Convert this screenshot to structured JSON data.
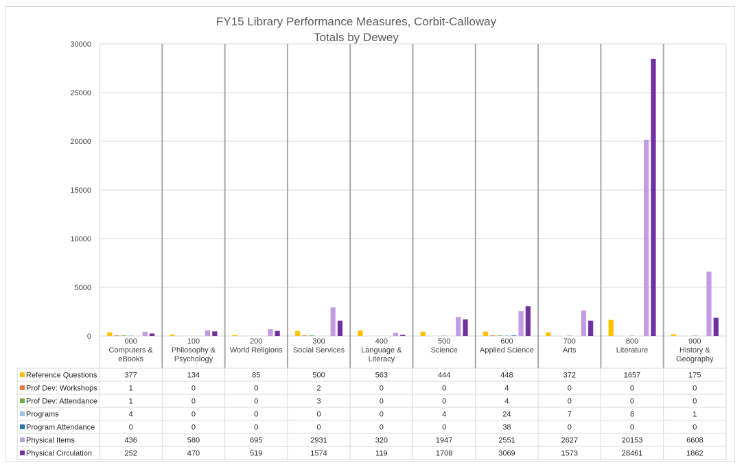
{
  "chart_data": {
    "type": "bar",
    "title": [
      "FY15 Library Performance Measures, Corbit-Calloway",
      "Totals by Dewey"
    ],
    "ylim": [
      0,
      30000
    ],
    "yticks": [
      0,
      5000,
      10000,
      15000,
      20000,
      25000,
      30000
    ],
    "grid": true,
    "legend_placement": "data-table-left",
    "categories": [
      [
        "000",
        "Computers &",
        "eBooks"
      ],
      [
        "100",
        "Philosophy &",
        "Psychology"
      ],
      [
        "200",
        "World Religions"
      ],
      [
        "300",
        "Social Services"
      ],
      [
        "400",
        "Language &",
        "Literacy"
      ],
      [
        "500",
        "Science"
      ],
      [
        "600",
        "Applied Science"
      ],
      [
        "700",
        "Arts"
      ],
      [
        "800",
        "Literature"
      ],
      [
        "900",
        "History &",
        "Geography"
      ]
    ],
    "series": [
      {
        "name": "Reference Questions",
        "color": "#ffc000",
        "values": [
          377,
          134,
          85,
          500,
          563,
          444,
          448,
          372,
          1657,
          175
        ]
      },
      {
        "name": "Prof Dev: Workshops",
        "color": "#ed7d31",
        "values": [
          1,
          0,
          0,
          2,
          0,
          0,
          4,
          0,
          0,
          0
        ]
      },
      {
        "name": "Prof Dev: Attendance",
        "color": "#70ad47",
        "values": [
          1,
          0,
          0,
          3,
          0,
          0,
          4,
          0,
          0,
          0
        ]
      },
      {
        "name": "Programs",
        "color": "#9dc3e6",
        "values": [
          4,
          0,
          0,
          0,
          0,
          4,
          24,
          7,
          8,
          1
        ]
      },
      {
        "name": "Program Attendance",
        "color": "#2e75b6",
        "values": [
          0,
          0,
          0,
          0,
          0,
          0,
          38,
          0,
          0,
          0
        ]
      },
      {
        "name": "Physical Items",
        "color": "#c39be3",
        "values": [
          436,
          580,
          695,
          2931,
          320,
          1947,
          2551,
          2627,
          20153,
          6608
        ]
      },
      {
        "name": "Physical Circulation",
        "color": "#7030a0",
        "values": [
          252,
          470,
          519,
          1574,
          119,
          1708,
          3069,
          1573,
          28461,
          1862
        ]
      }
    ]
  }
}
